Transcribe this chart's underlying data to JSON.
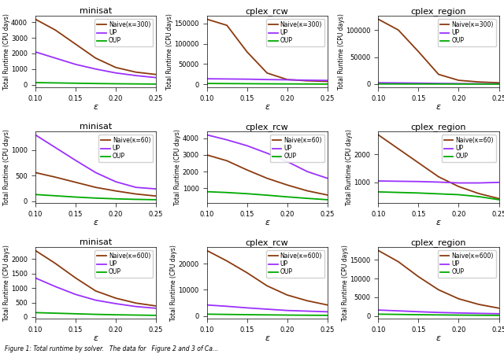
{
  "titles_row": [
    "minisat",
    "cplex_rcw",
    "cplex_region"
  ],
  "k_values": [
    300,
    60,
    600
  ],
  "ylabel": "Total Runtime (CPU days)",
  "xlabel": "ε",
  "colors": {
    "naive": "#8B3A0F",
    "UP": "#9B30FF",
    "OUP": "#00AA00"
  },
  "x": [
    0.1,
    0.125,
    0.15,
    0.175,
    0.2,
    0.225,
    0.25
  ],
  "data": {
    "300": {
      "minisat": {
        "naive": [
          4200,
          3500,
          2600,
          1700,
          1100,
          800,
          650
        ],
        "UP": [
          2100,
          1700,
          1300,
          1000,
          750,
          580,
          450
        ],
        "OUP": [
          130,
          110,
          90,
          70,
          55,
          45,
          35
        ]
      },
      "cplex_rcw": {
        "naive": [
          160000,
          145000,
          80000,
          28000,
          12000,
          9000,
          7500
        ],
        "UP": [
          14000,
          13500,
          13000,
          12000,
          11500,
          10500,
          10000
        ],
        "OUP": [
          2500,
          2200,
          1900,
          1600,
          1400,
          1200,
          1000
        ]
      },
      "cplex_region": {
        "naive": [
          120000,
          100000,
          60000,
          18000,
          7000,
          4000,
          2500
        ],
        "UP": [
          2500,
          2200,
          1800,
          1300,
          900,
          650,
          500
        ],
        "OUP": [
          300,
          260,
          220,
          170,
          130,
          100,
          80
        ]
      }
    },
    "60": {
      "minisat": {
        "naive": [
          560,
          470,
          370,
          270,
          200,
          140,
          100
        ],
        "UP": [
          1300,
          1050,
          800,
          560,
          380,
          270,
          240
        ],
        "OUP": [
          130,
          105,
          80,
          60,
          45,
          35,
          28
        ]
      },
      "cplex_rcw": {
        "naive": [
          3000,
          2650,
          2100,
          1600,
          1200,
          850,
          600
        ],
        "UP": [
          4200,
          3900,
          3550,
          3100,
          2600,
          2000,
          1600
        ],
        "OUP": [
          800,
          750,
          680,
          590,
          490,
          400,
          320
        ]
      },
      "cplex_region": {
        "naive": [
          2700,
          2200,
          1700,
          1200,
          850,
          600,
          420
        ],
        "UP": [
          1050,
          1040,
          1030,
          1010,
          980,
          980,
          1000
        ],
        "OUP": [
          660,
          640,
          620,
          590,
          560,
          490,
          380
        ]
      }
    },
    "600": {
      "minisat": {
        "naive": [
          2300,
          1850,
          1350,
          900,
          650,
          480,
          380
        ],
        "UP": [
          1350,
          1050,
          780,
          580,
          460,
          360,
          300
        ],
        "OUP": [
          150,
          130,
          110,
          90,
          75,
          65,
          55
        ]
      },
      "cplex_rcw": {
        "naive": [
          25000,
          21000,
          16500,
          11500,
          8000,
          5800,
          4200
        ],
        "UP": [
          4200,
          3700,
          3100,
          2600,
          2100,
          1850,
          1600
        ],
        "OUP": [
          700,
          600,
          500,
          420,
          350,
          290,
          240
        ]
      },
      "cplex_region": {
        "naive": [
          17500,
          14500,
          10500,
          7000,
          4600,
          3100,
          2100
        ],
        "UP": [
          1600,
          1380,
          1150,
          950,
          820,
          710,
          620
        ],
        "OUP": [
          500,
          430,
          360,
          300,
          250,
          210,
          180
        ]
      }
    }
  },
  "caption": "Figure 1: Total runtime by solver.   The data for   Figure 2 and 3 of Ca...",
  "figsize": [
    6.4,
    4.5
  ],
  "dpi": 100
}
